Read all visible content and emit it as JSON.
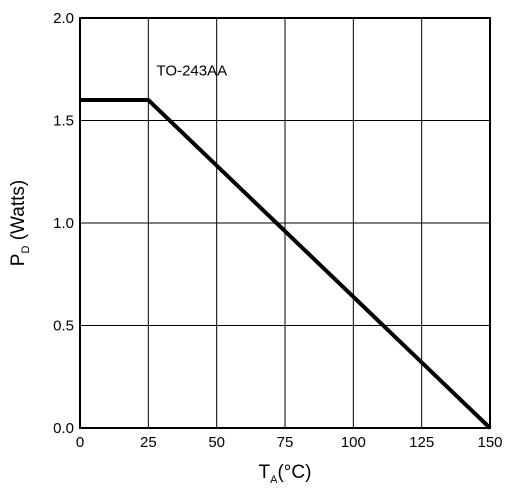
{
  "chart_data": {
    "type": "line",
    "title": "",
    "xlabel": {
      "main": "T",
      "sub": "A",
      "rest": "(°C)"
    },
    "ylabel": {
      "main": "P",
      "sub": "D",
      "rest": " (Watts)"
    },
    "xlim": [
      0,
      150
    ],
    "ylim": [
      0.0,
      2.0
    ],
    "x_ticks": [
      0,
      25,
      50,
      75,
      100,
      125,
      150
    ],
    "x_tick_labels": [
      "0",
      "25",
      "50",
      "75",
      "100",
      "125",
      "150"
    ],
    "y_ticks": [
      0.0,
      0.5,
      1.0,
      1.5,
      2.0
    ],
    "y_tick_labels": [
      "0.0",
      "0.5",
      "1.0",
      "1.5",
      "2.0"
    ],
    "grid": true,
    "series": [
      {
        "x": [
          0,
          25,
          150
        ],
        "y": [
          1.6,
          1.6,
          0.0
        ],
        "color": "#000000"
      }
    ],
    "annotations": [
      {
        "text": "TO-243AA",
        "x": 28,
        "y": 1.75
      }
    ]
  }
}
